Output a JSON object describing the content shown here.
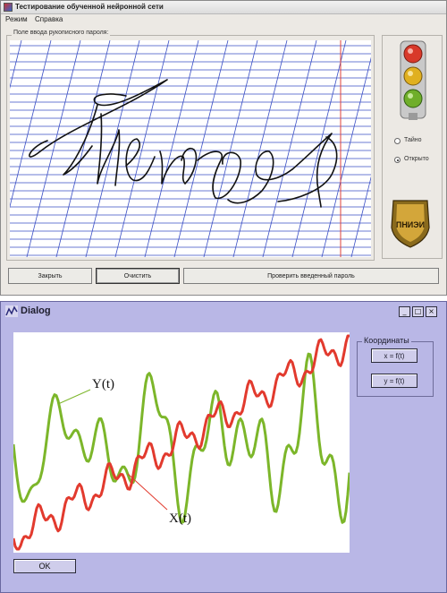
{
  "window1": {
    "title": "Тестирование обученной нейронной сети",
    "menu": [
      "Режим",
      "Справка"
    ],
    "input_area_label": "Поле ввода рукописного пароля:",
    "handwritten_word": "Пенза",
    "modes": [
      {
        "label": "Тайно",
        "selected": false
      },
      {
        "label": "Открыто",
        "selected": true
      }
    ],
    "emblem_text": "ПНИЭИ",
    "buttons": {
      "close": "Закрыть",
      "clear": "Очистить",
      "verify": "Проверить введенный пароль"
    },
    "colors": {
      "ruling": "#3a4fc4",
      "margin_line": "#e0413a",
      "ink": "#111111"
    }
  },
  "window2": {
    "title": "Dialog",
    "window_buttons": [
      "_",
      "□",
      "×"
    ],
    "coords_group_label": "Координаты",
    "coord_buttons": [
      "x = f(t)",
      "y = f(t)"
    ],
    "ok_label": "OK",
    "background": "#b9b7e6"
  },
  "chart_data": {
    "type": "line",
    "series": [
      {
        "name": "Y(t)",
        "color": "#7cb62a"
      },
      {
        "name": "X(t)",
        "color": "#e23a2e"
      }
    ]
  }
}
